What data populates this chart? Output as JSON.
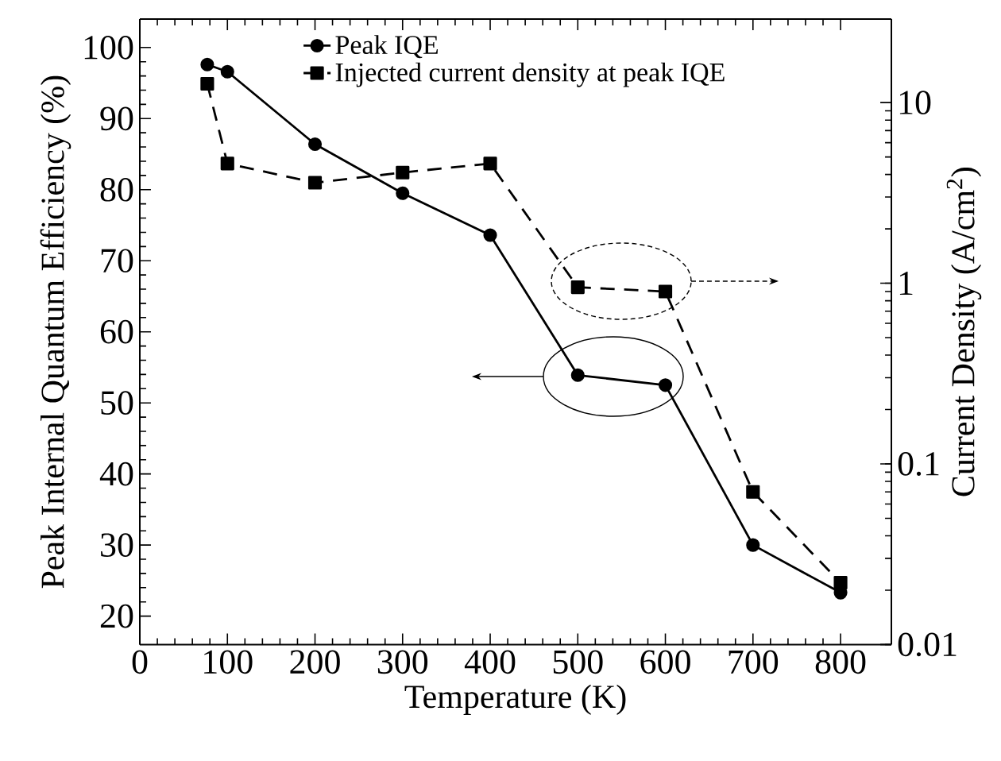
{
  "chart_data": {
    "type": "line",
    "xlabel": "Temperature (K)",
    "ylabel": "Peak Internal Quantum Efficiency (%)",
    "y2label": "Current Density (A/cm$^{2}$)",
    "x": [
      77,
      100,
      200,
      300,
      400,
      500,
      600,
      700,
      800
    ],
    "series": [
      {
        "name": "Peak IQE",
        "color": "#000000",
        "marker": "circle",
        "line_style": "solid",
        "axis": "y",
        "values": [
          97.6,
          96.6,
          86.4,
          79.5,
          73.6,
          53.9,
          52.5,
          30.0,
          23.3
        ]
      },
      {
        "name": "Injected current density at peak IQE",
        "color": "#000000",
        "marker": "square",
        "line_style": "dashed",
        "axis": "y2",
        "values": [
          12.7,
          4.6,
          3.6,
          4.1,
          4.6,
          0.95,
          0.9,
          0.07,
          0.022
        ]
      }
    ],
    "xlim": [
      0,
      858
    ],
    "xticks": [
      0,
      100,
      200,
      300,
      400,
      500,
      600,
      700,
      800
    ],
    "ylim": [
      16,
      104
    ],
    "yticks": [
      20,
      30,
      40,
      50,
      60,
      70,
      80,
      90,
      100
    ],
    "y2lim": [
      0.01,
      29
    ],
    "y2ticks": [
      0.01,
      0.1,
      1,
      10
    ],
    "log": "y2",
    "grid": false,
    "legend": "top"
  }
}
